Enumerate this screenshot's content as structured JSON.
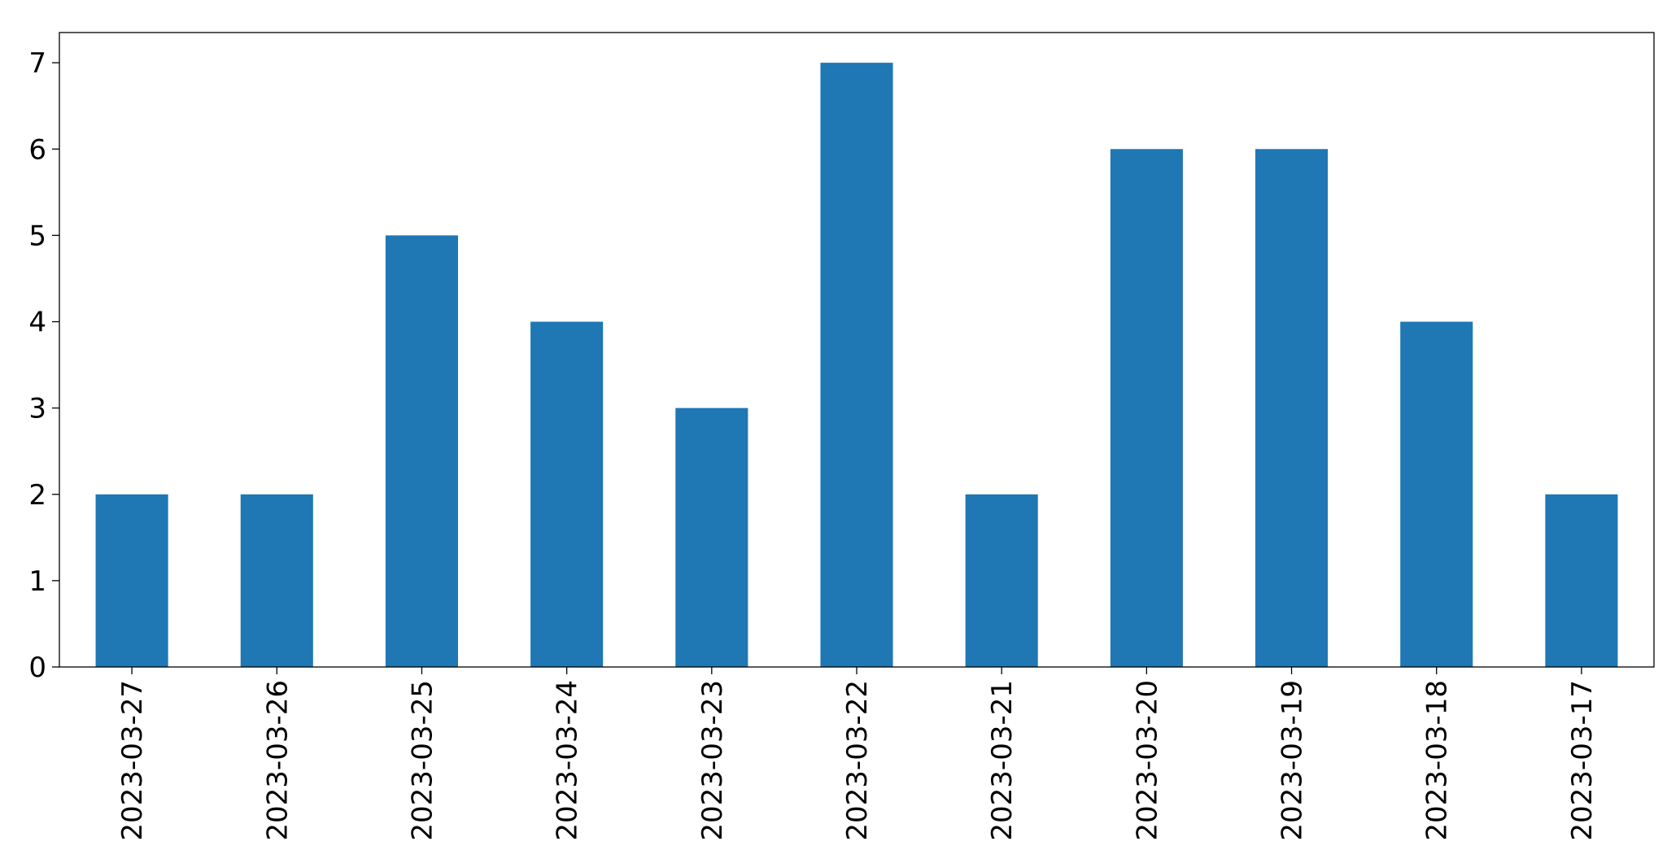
{
  "chart_data": {
    "type": "bar",
    "categories": [
      "2023-03-27",
      "2023-03-26",
      "2023-03-25",
      "2023-03-24",
      "2023-03-23",
      "2023-03-22",
      "2023-03-21",
      "2023-03-20",
      "2023-03-19",
      "2023-03-18",
      "2023-03-17"
    ],
    "values": [
      2,
      2,
      5,
      4,
      3,
      7,
      2,
      6,
      6,
      4,
      2
    ],
    "color": "#1f77b4",
    "ylim": [
      0,
      7.35
    ],
    "yticks": [
      0,
      1,
      2,
      3,
      4,
      5,
      6,
      7
    ],
    "grid": false
  }
}
